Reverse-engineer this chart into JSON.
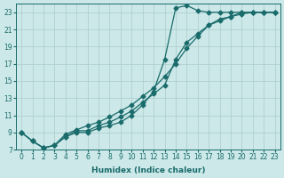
{
  "xlabel": "Humidex (Indice chaleur)",
  "ylabel": "",
  "bg_color": "#cce8e8",
  "grid_color": "#aacccc",
  "line_color": "#1a6b6b",
  "xlim": [
    -0.5,
    23.5
  ],
  "ylim": [
    7,
    24
  ],
  "xticks": [
    0,
    1,
    2,
    3,
    4,
    5,
    6,
    7,
    8,
    9,
    10,
    11,
    12,
    13,
    14,
    15,
    16,
    17,
    18,
    19,
    20,
    21,
    22,
    23
  ],
  "yticks": [
    7,
    9,
    11,
    13,
    15,
    17,
    19,
    21,
    23
  ],
  "curve_spike_x": [
    0,
    1,
    2,
    3,
    4,
    5,
    6,
    7,
    8,
    9,
    10,
    11,
    12,
    13,
    14,
    15,
    16,
    17,
    18,
    19,
    20,
    21,
    22,
    23
  ],
  "curve_spike_y": [
    9.0,
    8.0,
    7.2,
    7.5,
    8.5,
    9.0,
    9.0,
    9.5,
    9.8,
    10.2,
    11.0,
    12.2,
    13.8,
    17.5,
    23.5,
    23.8,
    23.2,
    23.0,
    23.0,
    23.0,
    23.0,
    23.0,
    23.0,
    23.0
  ],
  "curve_mid_x": [
    0,
    1,
    2,
    3,
    4,
    5,
    6,
    7,
    8,
    9,
    10,
    11,
    12,
    13,
    14,
    15,
    16,
    17,
    18,
    19,
    20,
    21,
    22,
    23
  ],
  "curve_mid_y": [
    9.0,
    8.0,
    7.2,
    7.5,
    8.5,
    9.2,
    9.2,
    9.8,
    10.2,
    10.8,
    11.5,
    12.5,
    13.5,
    14.5,
    17.5,
    19.5,
    20.5,
    21.5,
    22.0,
    22.5,
    23.0,
    23.0,
    23.0,
    23.0
  ],
  "curve_low_x": [
    0,
    1,
    2,
    3,
    4,
    5,
    6,
    7,
    8,
    9,
    10,
    11,
    12,
    13,
    14,
    15,
    16,
    17,
    18,
    19,
    20,
    21,
    22,
    23
  ],
  "curve_low_y": [
    9.0,
    8.0,
    7.2,
    7.5,
    8.8,
    9.3,
    9.8,
    10.2,
    10.8,
    11.5,
    12.2,
    13.2,
    14.2,
    15.5,
    17.0,
    18.8,
    20.2,
    21.5,
    22.2,
    22.5,
    22.8,
    23.0,
    23.0,
    23.0
  ],
  "marker": "D",
  "markersize": 2.5,
  "linewidth": 0.9,
  "tick_fontsize": 5.5,
  "xlabel_fontsize": 6.5
}
